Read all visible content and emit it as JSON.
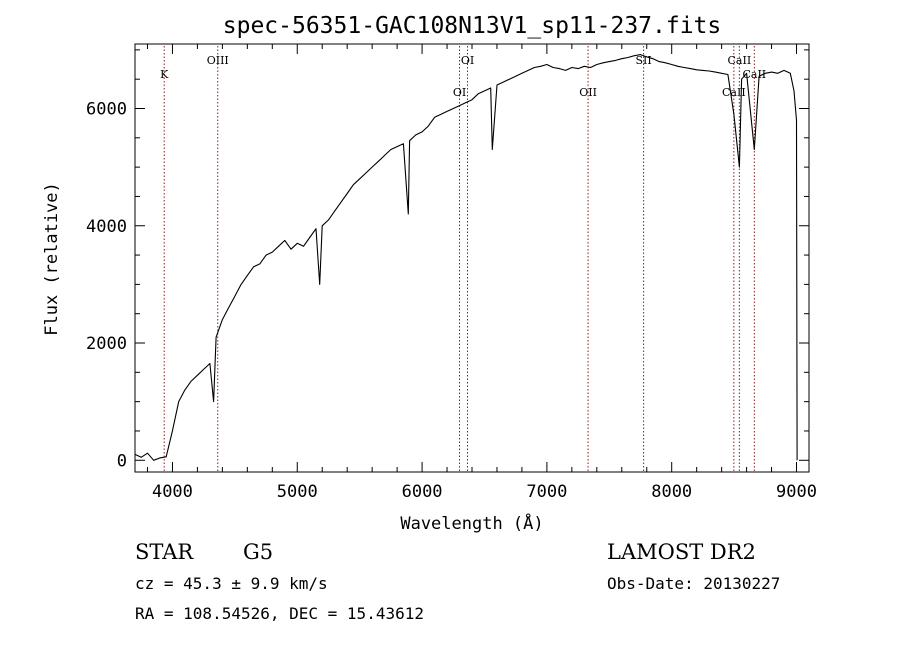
{
  "chart_data": {
    "type": "line",
    "title": "spec-56351-GAC108N13V1_sp11-237.fits",
    "xlabel": "Wavelength (Å)",
    "ylabel": "Flux (relative)",
    "xlim": [
      3700,
      9100
    ],
    "ylim": [
      -200,
      7100
    ],
    "xticks": [
      "4000",
      "5000",
      "6000",
      "7000",
      "8000",
      "9000"
    ],
    "yticks": [
      "0",
      "2000",
      "4000",
      "6000"
    ],
    "grid": false,
    "series": [
      {
        "x": [
          3700,
          3750,
          3800,
          3850,
          3900,
          3950,
          4000,
          4050,
          4100,
          4150,
          4200,
          4250,
          4300,
          4330,
          4350,
          4400,
          4450,
          4500,
          4550,
          4600,
          4650,
          4700,
          4750,
          4800,
          4850,
          4900,
          4950,
          5000,
          5050,
          5100,
          5150,
          5180,
          5200,
          5250,
          5300,
          5350,
          5400,
          5450,
          5500,
          5550,
          5600,
          5650,
          5700,
          5750,
          5800,
          5850,
          5890,
          5900,
          5950,
          6000,
          6050,
          6100,
          6150,
          6200,
          6250,
          6300,
          6350,
          6400,
          6450,
          6500,
          6550,
          6563,
          6600,
          6650,
          6700,
          6750,
          6800,
          6850,
          6900,
          6950,
          7000,
          7050,
          7100,
          7150,
          7200,
          7250,
          7300,
          7350,
          7400,
          7450,
          7500,
          7550,
          7600,
          7650,
          7700,
          7750,
          7800,
          7850,
          7900,
          7950,
          8000,
          8050,
          8100,
          8150,
          8200,
          8250,
          8300,
          8350,
          8400,
          8450,
          8498,
          8542,
          8560,
          8600,
          8662,
          8700,
          8750,
          8800,
          8850,
          8900,
          8950,
          8980,
          9000,
          9005
        ],
        "values": [
          100,
          50,
          120,
          0,
          40,
          60,
          500,
          1000,
          1200,
          1350,
          1450,
          1550,
          1650,
          1000,
          2100,
          2400,
          2600,
          2800,
          3000,
          3150,
          3300,
          3350,
          3500,
          3550,
          3650,
          3750,
          3600,
          3700,
          3650,
          3800,
          3950,
          3000,
          4000,
          4100,
          4250,
          4400,
          4550,
          4700,
          4800,
          4900,
          5000,
          5100,
          5200,
          5300,
          5350,
          5400,
          4200,
          5450,
          5550,
          5600,
          5700,
          5850,
          5900,
          5950,
          6000,
          6050,
          6100,
          6150,
          6250,
          6300,
          6350,
          5300,
          6400,
          6450,
          6500,
          6550,
          6600,
          6650,
          6700,
          6720,
          6750,
          6700,
          6680,
          6650,
          6700,
          6680,
          6720,
          6700,
          6750,
          6780,
          6800,
          6820,
          6850,
          6870,
          6900,
          6920,
          6880,
          6850,
          6800,
          6780,
          6750,
          6720,
          6700,
          6680,
          6660,
          6650,
          6640,
          6620,
          6600,
          6580,
          5900,
          5000,
          6500,
          6600,
          5300,
          6550,
          6600,
          6620,
          6600,
          6650,
          6600,
          6300,
          5800,
          0
        ]
      }
    ],
    "lines": [
      {
        "label": "K",
        "x": 3934
      },
      {
        "label": "OIII",
        "x": 4363
      },
      {
        "label": "OI",
        "x": 6300
      },
      {
        "label": "OI",
        "x": 6364
      },
      {
        "label": "OII",
        "x": 7330
      },
      {
        "label": "SII",
        "x": 7775
      },
      {
        "label": "CaII",
        "x": 8498
      },
      {
        "label": "CaII",
        "x": 8542
      },
      {
        "label": "CaII",
        "x": 8662
      }
    ]
  },
  "info": {
    "class_type": "STAR",
    "subclass": "G5",
    "survey": "LAMOST DR2",
    "cz": "cz = 45.3 ± 9.9 km/s",
    "obs_date": "Obs-Date: 20130227",
    "coords": "RA = 108.54526, DEC =  15.43612"
  }
}
